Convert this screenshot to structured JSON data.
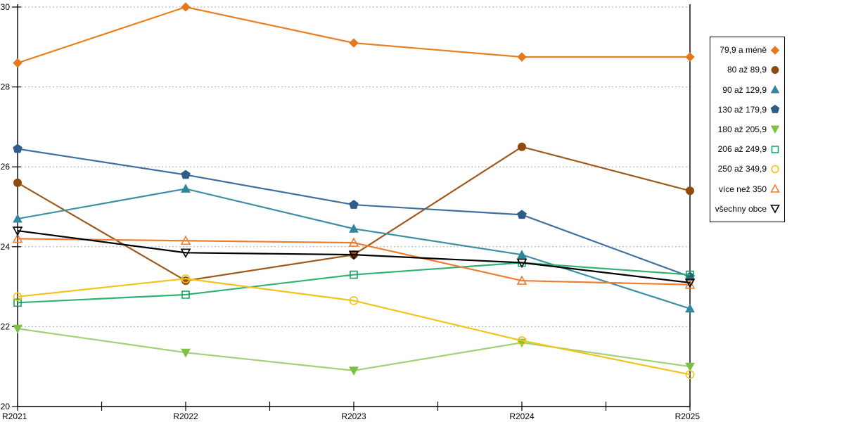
{
  "chart_data": {
    "type": "line",
    "title": "",
    "xlabel": "",
    "ylabel": "",
    "categories": [
      "R2021",
      "R2022",
      "R2023",
      "R2024",
      "R2025"
    ],
    "ylim": [
      20,
      30
    ],
    "yticks": [
      "20",
      "22",
      "24",
      "26",
      "28",
      "30"
    ],
    "grid": "horizontal dotted gridlines at 22,24,26,28,30",
    "grid_color": "#AAAAAA",
    "axis_color": "#000000",
    "legend_position": "right, boxed",
    "series": [
      {
        "name": "79,9 a méně",
        "marker": "diamond",
        "hollow": false,
        "color": "#E5791E",
        "line_color": "#E8801F",
        "values": [
          28.6,
          30.0,
          29.1,
          28.75,
          28.75
        ]
      },
      {
        "name": "80 až 89,9",
        "marker": "circle",
        "hollow": false,
        "color": "#8F4A0E",
        "line_color": "#9E5A1C",
        "values": [
          25.6,
          23.15,
          23.8,
          26.5,
          25.4
        ]
      },
      {
        "name": "90 až 129,9",
        "marker": "triangle-up",
        "hollow": false,
        "color": "#31859C",
        "line_color": "#3E8FA5",
        "values": [
          24.7,
          25.45,
          24.45,
          23.8,
          22.45
        ]
      },
      {
        "name": "130 až 179,9",
        "marker": "pentagon",
        "hollow": false,
        "color": "#305C8A",
        "line_color": "#3F6F9E",
        "values": [
          26.45,
          25.8,
          25.05,
          24.8,
          23.25
        ]
      },
      {
        "name": "180 až 205,9",
        "marker": "triangle-down",
        "hollow": false,
        "color": "#7DC142",
        "line_color": "#A4D077",
        "values": [
          21.95,
          21.35,
          20.9,
          21.6,
          21.0
        ]
      },
      {
        "name": "206 až 249,9",
        "marker": "square",
        "hollow": true,
        "color": "#12A35F",
        "line_color": "#2FB272",
        "values": [
          22.6,
          22.8,
          23.3,
          23.6,
          23.3
        ]
      },
      {
        "name": "250 až 349,9",
        "marker": "circle",
        "hollow": true,
        "color": "#F2C31C",
        "line_color": "#F2C31C",
        "values": [
          22.75,
          23.2,
          22.65,
          21.65,
          20.8
        ]
      },
      {
        "name": "více než 350",
        "marker": "triangle-up",
        "hollow": true,
        "color": "#ED7D31",
        "line_color": "#ED7D31",
        "values": [
          24.2,
          24.15,
          24.1,
          23.15,
          23.05
        ]
      },
      {
        "name": "všechny obce",
        "marker": "triangle-down",
        "hollow": true,
        "color": "#000000",
        "line_color": "#000000",
        "values": [
          24.4,
          23.85,
          23.8,
          23.6,
          23.1
        ]
      }
    ]
  }
}
